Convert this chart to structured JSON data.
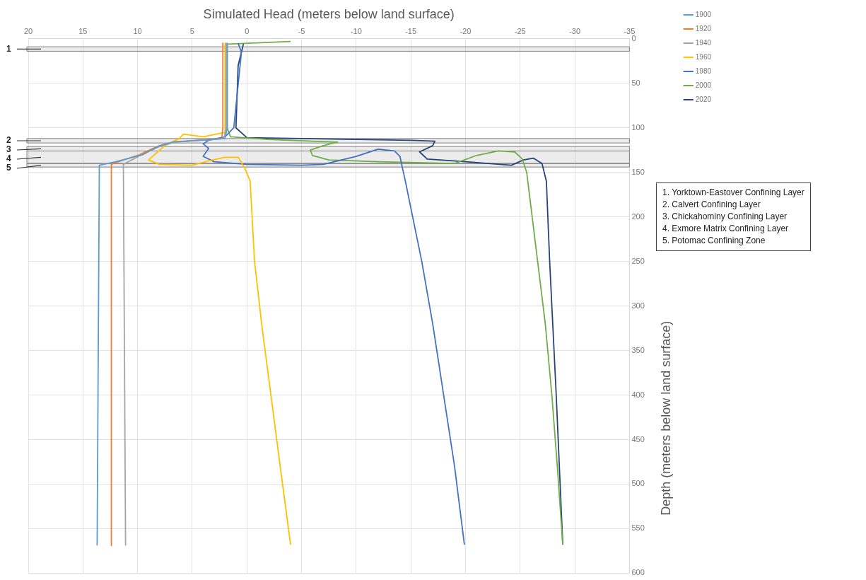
{
  "chart_data": {
    "type": "line",
    "xlabel": "Simulated Head (meters below land surface)",
    "ylabel": "Depth (meters below land surface)",
    "xlim": [
      20,
      -35
    ],
    "xticks": [
      20,
      15,
      10,
      5,
      0,
      -5,
      -10,
      -15,
      -20,
      -25,
      -30,
      -35
    ],
    "ylim": [
      600,
      0
    ],
    "yticks": [
      0,
      50,
      100,
      150,
      200,
      250,
      300,
      350,
      400,
      450,
      500,
      550,
      600
    ],
    "grid": true,
    "legend": "right",
    "marker": "none",
    "line_style": "solid",
    "series": [
      {
        "name": "1900",
        "color": "#5b9bd5",
        "x": [
          1.8,
          1.8,
          2,
          6.7,
          8,
          9.5,
          12,
          13.5,
          13.7
        ],
        "values": [
          5,
          100,
          112,
          116,
          120,
          130,
          138,
          142,
          569
        ]
      },
      {
        "name": "1920",
        "color": "#ed7d31",
        "x": [
          2.2,
          2.2,
          2.3,
          6.8,
          8.2,
          9.8,
          12,
          12.4,
          12.4
        ],
        "values": [
          5,
          100,
          112,
          116,
          121,
          130,
          139,
          141,
          569
        ]
      },
      {
        "name": "1940",
        "color": "#a5a5a5",
        "x": [
          1.9,
          1.9,
          2.1,
          6.6,
          8,
          9.6,
          11.3,
          11.1
        ],
        "values": [
          5,
          100,
          112,
          116,
          121,
          130,
          141,
          569
        ]
      },
      {
        "name": "1960",
        "color": "#ffc000",
        "x": [
          2,
          2,
          4,
          5.8,
          6.2,
          7.5,
          9,
          8,
          5,
          3.5,
          2,
          0.8,
          0.2,
          -0.3,
          -0.7,
          -1.4,
          -2.2,
          -3.1,
          -4
        ],
        "values": [
          5,
          105,
          110,
          107,
          112,
          120,
          136,
          141,
          142,
          137,
          133,
          133,
          145,
          160,
          250,
          325,
          400,
          485,
          568
        ]
      },
      {
        "name": "1980",
        "color": "#4472c4",
        "x": [
          0.8,
          0.5,
          1.2,
          2,
          3.5,
          4,
          3.5,
          4,
          3,
          0,
          -5,
          -7,
          -10,
          -12,
          -13.5,
          -14,
          -14.5,
          -16,
          -17,
          -18,
          -19,
          -19.9
        ],
        "values": [
          5,
          15,
          100,
          110,
          114,
          118,
          123,
          132,
          138,
          141,
          142,
          141,
          132,
          124,
          126,
          132,
          160,
          250,
          320,
          400,
          480,
          568
        ]
      },
      {
        "name": "2000",
        "color": "#70ad47",
        "x": [
          -4,
          1.8,
          1.8,
          1.5,
          -2,
          -6,
          -8.3,
          -7,
          -5.8,
          -6,
          -7.5,
          -12,
          -19,
          -21,
          -23,
          -24.5,
          -25.2,
          -25.6,
          -26.6,
          -27.3,
          -27.9,
          -28.4,
          -28.9
        ],
        "values": [
          3,
          6,
          100,
          110,
          113,
          115,
          116,
          120,
          125,
          131,
          136,
          138,
          140,
          131,
          126,
          127,
          135,
          150,
          250,
          320,
          400,
          480,
          568
        ]
      },
      {
        "name": "2020",
        "color": "#264478",
        "x": [
          0.3,
          0.8,
          1,
          0,
          -5,
          -10,
          -15,
          -17.2,
          -17,
          -15.8,
          -16.5,
          -20,
          -24.2,
          -25.3,
          -26.2,
          -27,
          -27.4,
          -27.7,
          -28.3,
          -28.9
        ],
        "values": [
          5,
          30,
          100,
          111,
          112,
          113,
          114,
          115,
          120,
          127,
          135,
          138,
          142,
          136,
          134,
          140,
          160,
          250,
          400,
          568
        ]
      }
    ],
    "bands": [
      {
        "axis": "y",
        "from": 9,
        "to": 14,
        "label": "1",
        "color": "#7f7f7f"
      },
      {
        "axis": "y",
        "from": 112,
        "to": 117,
        "label": "2",
        "color": "#7f7f7f"
      },
      {
        "axis": "y",
        "from": 121,
        "to": 126,
        "label": "3",
        "color": "#7f7f7f"
      },
      {
        "axis": "y",
        "from": 126,
        "to": 140,
        "label": "4",
        "color": "#7f7f7f"
      },
      {
        "axis": "y",
        "from": 140,
        "to": 144,
        "label": "5",
        "color": "#7f7f7f"
      }
    ],
    "annotations": [
      "1. Yorktown-Eastover Confining Layer",
      "2. Calvert Confining Layer",
      "3. Chickahominy Confining Layer",
      "4. Exmore Matrix Confining Layer",
      "5. Potomac Confining Zone"
    ]
  }
}
